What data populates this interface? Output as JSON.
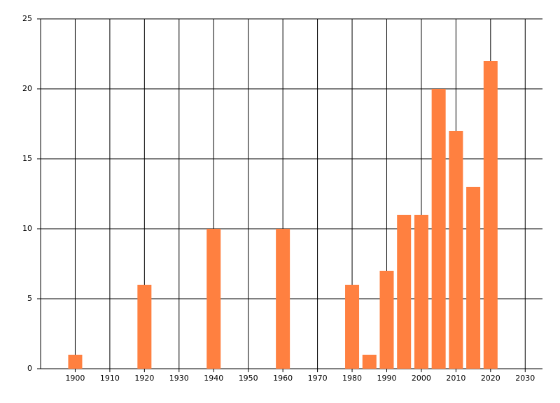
{
  "chart_data": {
    "type": "bar",
    "x": [
      1900,
      1920,
      1940,
      1960,
      1980,
      1985,
      1990,
      1995,
      2000,
      2005,
      2010,
      2015,
      2020
    ],
    "values": [
      1,
      6,
      10,
      10,
      6,
      1,
      7,
      11,
      11,
      20,
      17,
      13,
      22
    ],
    "color": "#ff8040",
    "xlim": [
      1890,
      2035
    ],
    "xticks": [
      1900,
      1910,
      1920,
      1930,
      1940,
      1950,
      1960,
      1970,
      1980,
      1990,
      2000,
      2010,
      2020,
      2030
    ],
    "ylim": [
      0,
      25
    ],
    "yticks": [
      0,
      5,
      10,
      15,
      20,
      25
    ],
    "grid": true
  }
}
